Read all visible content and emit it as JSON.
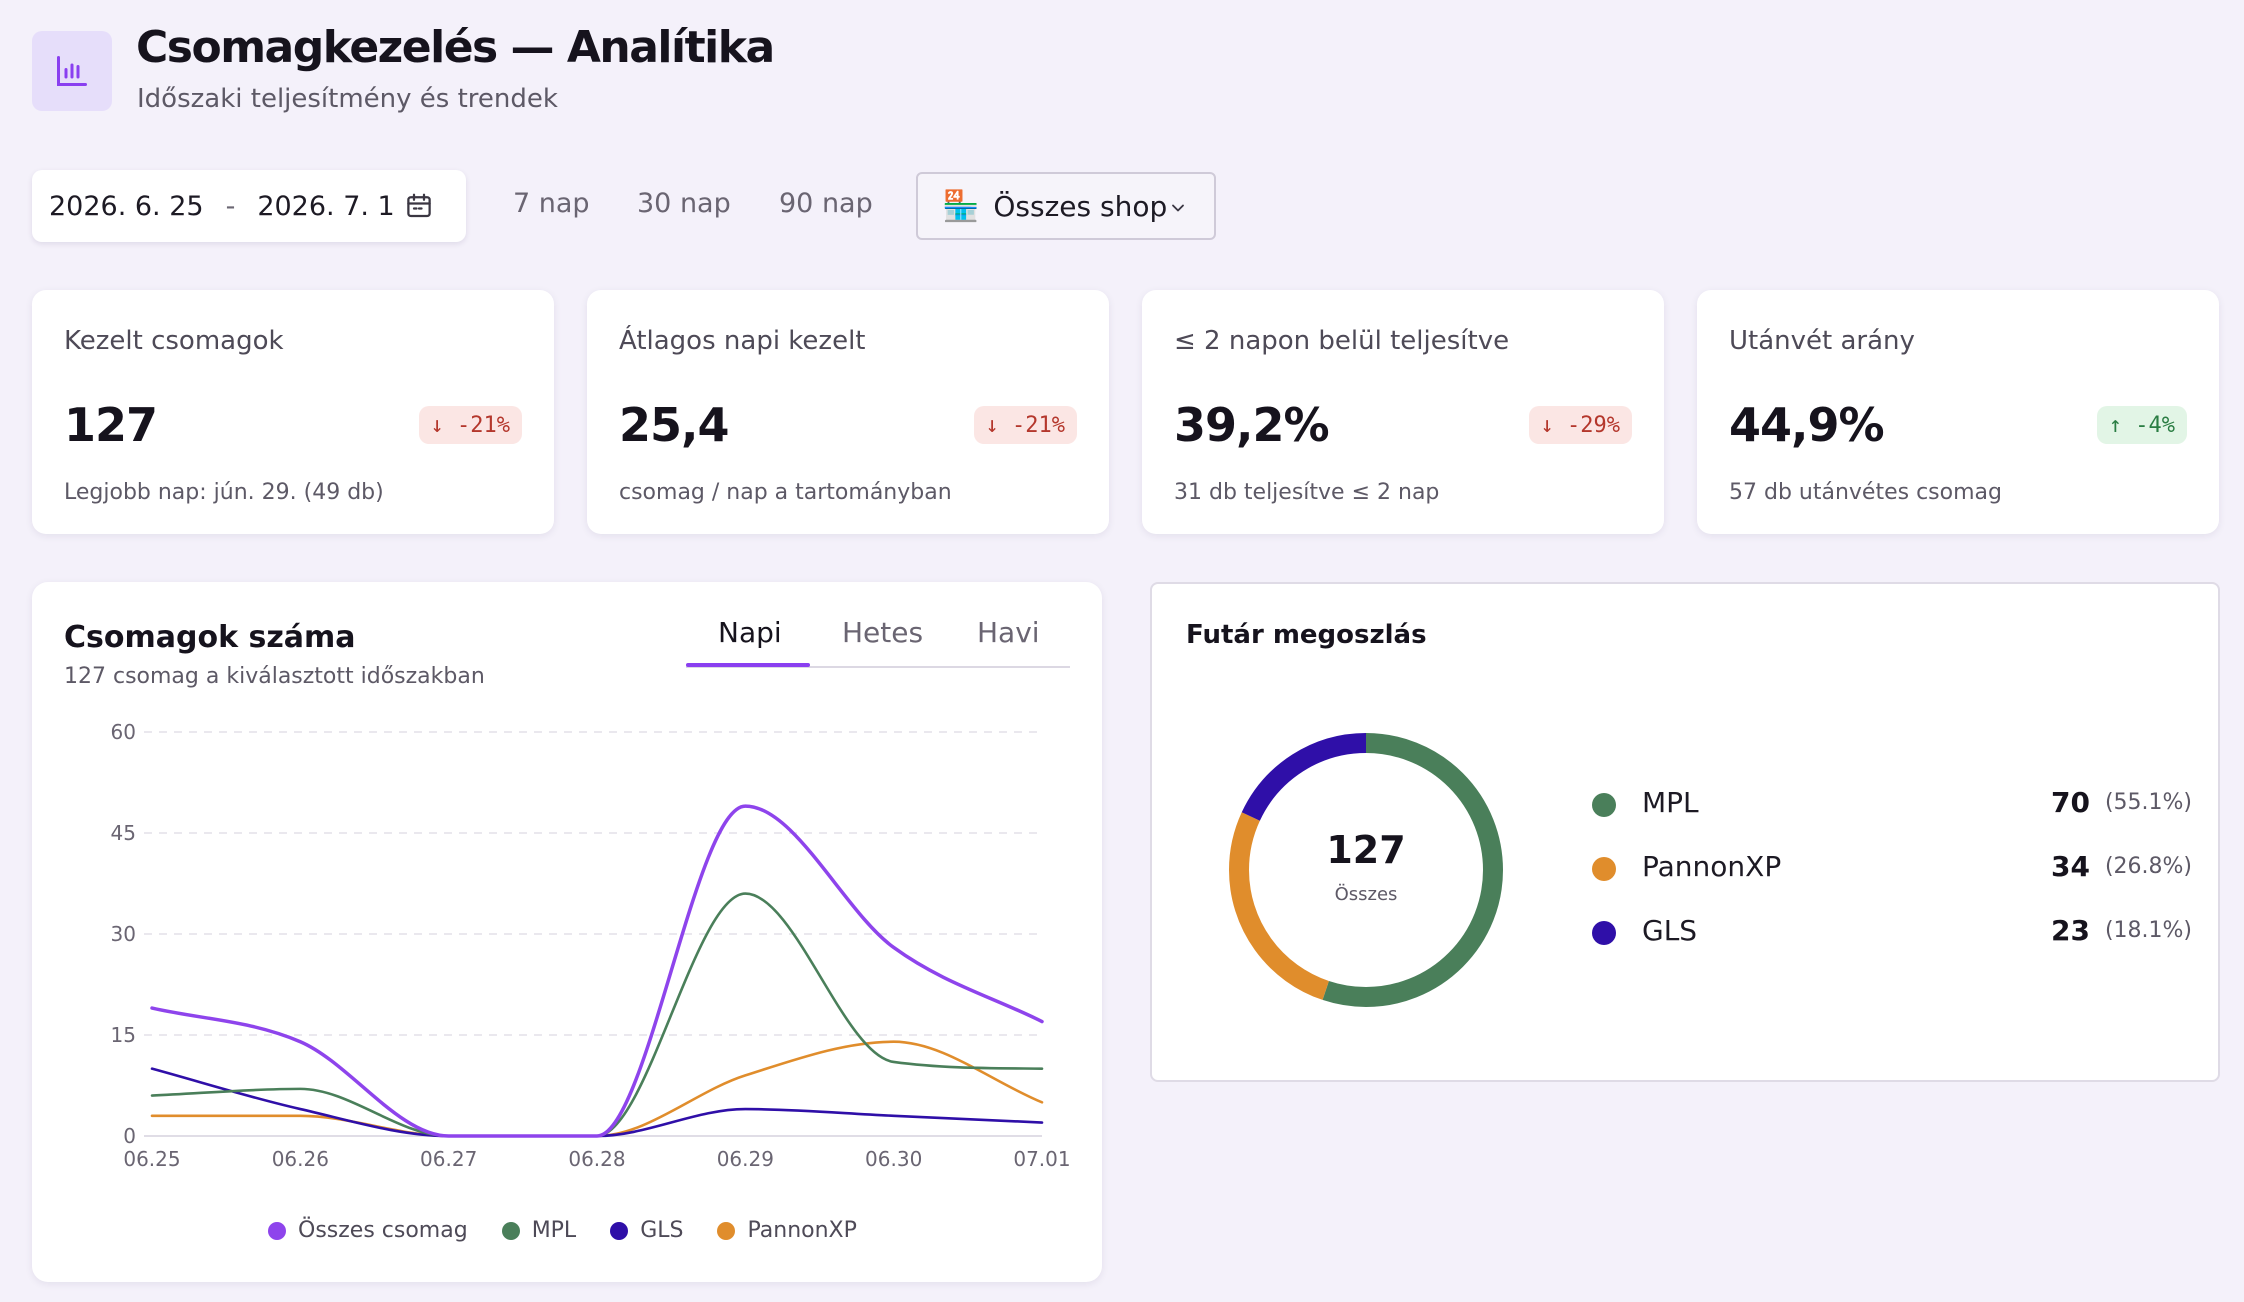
{
  "header": {
    "title": "Csomagkezelés — Analítika",
    "subtitle": "Időszaki teljesítmény és trendek",
    "icon": "bar-chart-icon"
  },
  "toolbar": {
    "date_from": "2026. 6. 25",
    "date_sep": "-",
    "date_to": "2026. 7. 1",
    "ranges": [
      "7 nap",
      "30 nap",
      "90 nap"
    ],
    "shop_select": "Összes shop"
  },
  "kpis": [
    {
      "label": "Kezelt csomagok",
      "value": "127",
      "badge": "↓ -21%",
      "trend": "down",
      "note": "Legjobb nap: jún. 29. (49 db)"
    },
    {
      "label": "Átlagos napi kezelt",
      "value": "25,4",
      "badge": "↓ -21%",
      "trend": "down",
      "note": "csomag / nap a tartományban"
    },
    {
      "label": "≤ 2 napon belül teljesítve",
      "value": "39,2%",
      "badge": "↓ -29%",
      "trend": "down",
      "note": "31 db teljesítve ≤ 2 nap"
    },
    {
      "label": "Utánvét arány",
      "value": "44,9%",
      "badge": "↑ -4%",
      "trend": "up",
      "note": "57 db utánvétes csomag"
    }
  ],
  "volume_chart": {
    "title": "Csomagok száma",
    "subtitle": "127 csomag a kiválasztott időszakban",
    "tabs": [
      "Napi",
      "Hetes",
      "Havi"
    ],
    "active_tab": "Napi"
  },
  "chart_data": {
    "type": "line",
    "x": [
      "06.25",
      "06.26",
      "06.27",
      "06.28",
      "06.29",
      "06.30",
      "07.01"
    ],
    "y_ticks": [
      0,
      15,
      30,
      45,
      60
    ],
    "ylim": [
      0,
      60
    ],
    "grid": true,
    "legend_position": "bottom",
    "series": [
      {
        "name": "Összes csomag",
        "color": "#8e44ec",
        "values": [
          19,
          14,
          0,
          0,
          49,
          28,
          17
        ]
      },
      {
        "name": "MPL",
        "color": "#4a7f5a",
        "values": [
          6,
          7,
          0,
          0,
          36,
          11,
          10
        ]
      },
      {
        "name": "GLS",
        "color": "#2f0fa8",
        "values": [
          10,
          4,
          0,
          0,
          4,
          3,
          2
        ]
      },
      {
        "name": "PannonXP",
        "color": "#e08d2c",
        "values": [
          3,
          3,
          0,
          0,
          9,
          14,
          5
        ]
      }
    ]
  },
  "courier_split": {
    "title": "Futár megoszlás",
    "total": "127",
    "total_caption": "Összes",
    "items": [
      {
        "name": "MPL",
        "count": "70",
        "pct": "(55.1%)",
        "value": 70,
        "color": "#4a7f5a"
      },
      {
        "name": "PannonXP",
        "count": "34",
        "pct": "(26.8%)",
        "value": 34,
        "color": "#e08d2c"
      },
      {
        "name": "GLS",
        "count": "23",
        "pct": "(18.1%)",
        "value": 23,
        "color": "#2f0fa8"
      }
    ]
  }
}
